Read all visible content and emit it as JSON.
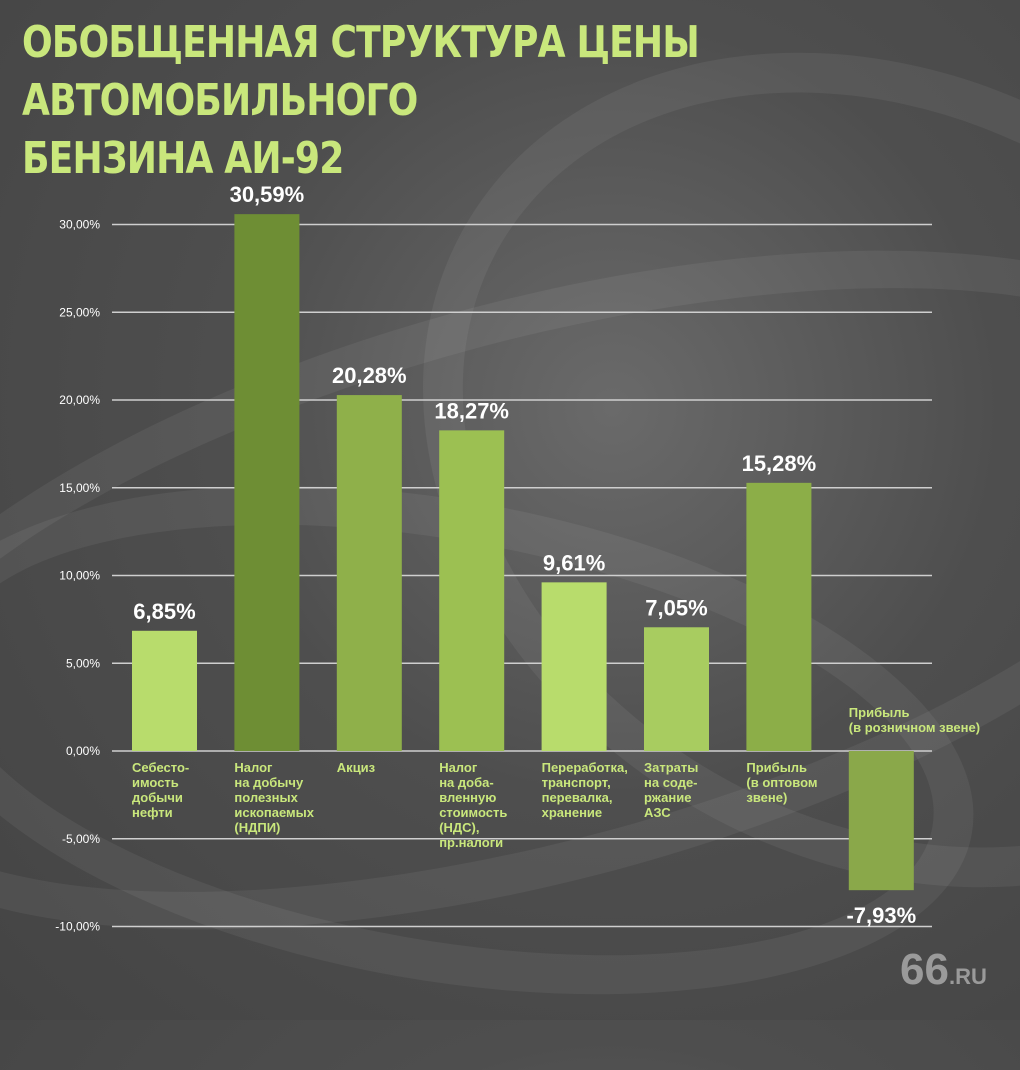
{
  "title": "ОБОБЩЕННАЯ СТРУКТУРА ЦЕНЫ АВТОМОБИЛЬНОГО\nБЕНЗИНА АИ-92",
  "logo": {
    "main": "66",
    "suffix": ".RU"
  },
  "chart_data": {
    "type": "bar",
    "title": "ОБОБЩЕННАЯ СТРУКТУРА ЦЕНЫ АВТОМОБИЛЬНОГО БЕНЗИНА АИ-92",
    "ylim": [
      -10,
      30
    ],
    "yticks": [
      30,
      25,
      20,
      15,
      10,
      5,
      0,
      -5,
      -10
    ],
    "ytick_labels": [
      "30,00%",
      "25,00%",
      "20,00%",
      "15,00%",
      "10,00%",
      "5,00%",
      "0,00%",
      "-5,00%",
      "-10,00%"
    ],
    "grid": true,
    "categories": [
      "Себесто-\nимость\nдобычи\nнефти",
      "Налог\nна добычу\nполезных\nископаемых\n(НДПИ)",
      "Акциз",
      "Налог\nна доба-\nвленную\nстоимость\n(НДС),\nпр.налоги",
      "Переработка,\nтранспорт,\nперевалка,\nхранение",
      "Затраты\nна соде-\nржание\nАЗС",
      "Прибыль\n(в оптовом\nзвене)",
      "Прибыль\n(в розничном звене)"
    ],
    "values": [
      6.85,
      30.59,
      20.28,
      18.27,
      9.61,
      7.05,
      15.28,
      -7.93
    ],
    "value_labels": [
      "6,85%",
      "30,59%",
      "20,28%",
      "18,27%",
      "9,61%",
      "7,05%",
      "15,28%",
      "-7,93%"
    ],
    "colors": [
      "#b8dc6c",
      "#6e8e34",
      "#8fb04a",
      "#9cc052",
      "#b8dc6c",
      "#a8cc60",
      "#8cae48",
      "#8aa84a"
    ],
    "accent_color": "#c9e77c"
  }
}
